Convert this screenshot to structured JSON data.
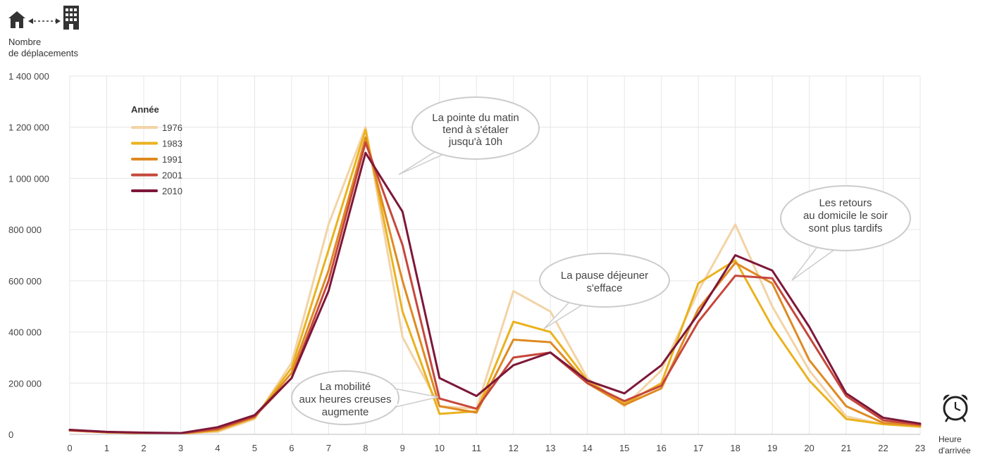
{
  "chart_data": {
    "type": "line",
    "ylabel": [
      "Nombre",
      "de déplacements"
    ],
    "xlabel": [
      "Heure",
      "d'arrivée"
    ],
    "x": [
      0,
      1,
      2,
      3,
      4,
      5,
      6,
      7,
      8,
      9,
      10,
      11,
      12,
      13,
      14,
      15,
      16,
      17,
      18,
      19,
      20,
      21,
      22,
      23
    ],
    "x_tick_labels": [
      "0",
      "1",
      "2",
      "3",
      "4",
      "5",
      "6",
      "7",
      "8",
      "9",
      "10",
      "11",
      "12",
      "13",
      "14",
      "15",
      "16",
      "17",
      "18",
      "19",
      "20",
      "21",
      "22",
      "23"
    ],
    "ylim": [
      0,
      1400000
    ],
    "y_ticks": [
      0,
      200000,
      400000,
      600000,
      800000,
      1000000,
      1200000,
      1400000
    ],
    "y_tick_labels": [
      "0",
      "200 000",
      "400 000",
      "600 000",
      "800 000",
      "1 000 000",
      "1 200 000",
      "1 400 000"
    ],
    "grid": true,
    "legend": {
      "title": "Année",
      "position": "top-left"
    },
    "series": [
      {
        "name": "1976",
        "color": "#f3d3a6",
        "values": [
          15000,
          8000,
          5000,
          3000,
          10000,
          60000,
          280000,
          820000,
          1200000,
          380000,
          110000,
          100000,
          560000,
          480000,
          220000,
          110000,
          250000,
          560000,
          820000,
          500000,
          250000,
          70000,
          40000,
          30000
        ]
      },
      {
        "name": "1983",
        "color": "#eab21e",
        "values": [
          15000,
          8000,
          5000,
          3000,
          15000,
          65000,
          260000,
          720000,
          1190000,
          480000,
          80000,
          90000,
          440000,
          400000,
          210000,
          120000,
          200000,
          590000,
          680000,
          420000,
          210000,
          60000,
          40000,
          30000
        ]
      },
      {
        "name": "1991",
        "color": "#df8a22",
        "values": [
          15000,
          8000,
          5000,
          3000,
          18000,
          68000,
          240000,
          640000,
          1160000,
          600000,
          110000,
          85000,
          370000,
          360000,
          200000,
          115000,
          180000,
          490000,
          670000,
          590000,
          290000,
          110000,
          45000,
          35000
        ]
      },
      {
        "name": "2001",
        "color": "#c6473b",
        "values": [
          16000,
          9000,
          6000,
          4000,
          22000,
          70000,
          220000,
          600000,
          1140000,
          740000,
          140000,
          100000,
          300000,
          320000,
          200000,
          130000,
          190000,
          440000,
          620000,
          610000,
          380000,
          150000,
          55000,
          38000
        ]
      },
      {
        "name": "2010",
        "color": "#7d1738",
        "values": [
          18000,
          10000,
          7000,
          5000,
          28000,
          75000,
          220000,
          560000,
          1100000,
          870000,
          220000,
          150000,
          270000,
          320000,
          210000,
          160000,
          270000,
          470000,
          700000,
          640000,
          420000,
          160000,
          65000,
          42000
        ]
      }
    ],
    "annotations": [
      {
        "id": "morning",
        "lines": [
          "La pointe du matin",
          "tend à s'étaler",
          "jusqu'à 10h"
        ]
      },
      {
        "id": "lunch",
        "lines": [
          "La pause déjeuner",
          "s'efface"
        ]
      },
      {
        "id": "offpeak",
        "lines": [
          "La mobilité",
          "aux heures creuses",
          "augmente"
        ]
      },
      {
        "id": "evening",
        "lines": [
          "Les retours",
          "au domicile le soir",
          "sont plus tardifs"
        ]
      }
    ]
  },
  "icons": {
    "top_left": [
      "house-icon",
      "dashed-double-arrow-icon",
      "office-building-icon"
    ],
    "bottom_right": "alarm-clock-icon"
  }
}
